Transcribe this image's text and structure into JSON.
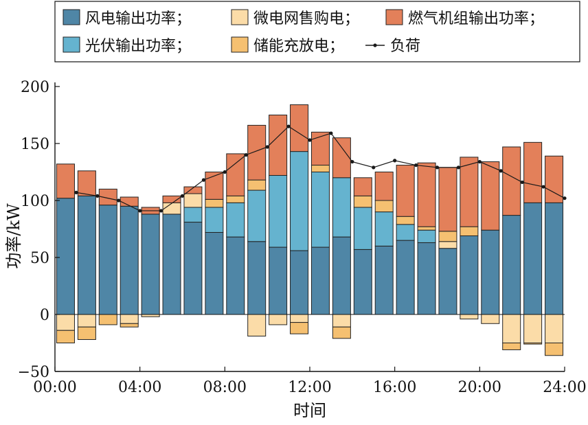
{
  "chart_data": {
    "type": "bar",
    "stacked": true,
    "xlabel": "时间",
    "ylabel": "功率/kW",
    "ylim": [
      -50,
      200
    ],
    "xlim": [
      0,
      24
    ],
    "x_ticks": [
      {
        "value": 0,
        "label": "00:00"
      },
      {
        "value": 4,
        "label": "04:00"
      },
      {
        "value": 8,
        "label": "08:00"
      },
      {
        "value": 12,
        "label": "12:00"
      },
      {
        "value": 16,
        "label": "16:00"
      },
      {
        "value": 20,
        "label": "20:00"
      },
      {
        "value": 24,
        "label": "24:00"
      }
    ],
    "y_ticks": [
      {
        "value": -50,
        "label": "−50"
      },
      {
        "value": 0,
        "label": "0"
      },
      {
        "value": 50,
        "label": "50"
      },
      {
        "value": 100,
        "label": "100"
      },
      {
        "value": 150,
        "label": "150"
      },
      {
        "value": 200,
        "label": "200"
      }
    ],
    "hours": [
      1,
      2,
      3,
      4,
      5,
      6,
      7,
      8,
      9,
      10,
      11,
      12,
      13,
      14,
      15,
      16,
      17,
      18,
      19,
      20,
      21,
      22,
      23,
      24
    ],
    "legend": [
      {
        "key": "wind",
        "label": "风电输出功率；"
      },
      {
        "key": "grid",
        "label": "微电网售购电；"
      },
      {
        "key": "gas",
        "label": "燃气机组输出功率；"
      },
      {
        "key": "pv",
        "label": "光伏输出功率；"
      },
      {
        "key": "storage",
        "label": "储能充放电；"
      },
      {
        "key": "load",
        "label": "负荷"
      }
    ],
    "series": [
      {
        "key": "wind",
        "name": "风电输出功率",
        "color": "#4f86a6",
        "values": [
          102,
          104,
          96,
          95,
          88,
          88,
          81,
          72,
          68,
          64,
          59,
          56,
          59,
          68,
          57,
          60,
          65,
          63,
          58,
          69,
          74,
          87,
          98,
          98
        ]
      },
      {
        "key": "pv",
        "name": "光伏输出功率",
        "color": "#65b3cf",
        "values": [
          0,
          0,
          0,
          0,
          0,
          0,
          13,
          22,
          30,
          45,
          63,
          87,
          66,
          52,
          37,
          30,
          14,
          11,
          0,
          0,
          0,
          0,
          0,
          0
        ]
      },
      {
        "key": "grid",
        "name": "微电网售购电",
        "color": "#fbdca8",
        "values": [
          0,
          0,
          0,
          0,
          0,
          10,
          12,
          0,
          0,
          0,
          0,
          0,
          0,
          0,
          0,
          0,
          0,
          0,
          6,
          0,
          0,
          0,
          0,
          0
        ]
      },
      {
        "key": "storage",
        "name": "储能充放电",
        "color": "#f5c071",
        "values": [
          0,
          0,
          0,
          0,
          0,
          0,
          0,
          7,
          6,
          9,
          0,
          0,
          6,
          0,
          10,
          10,
          7,
          3,
          9,
          8,
          0,
          0,
          0,
          0
        ]
      },
      {
        "key": "gas",
        "name": "燃气机组输出功率",
        "color": "#e3805a",
        "values": [
          30,
          22,
          14,
          8,
          6,
          6,
          6,
          24,
          37,
          48,
          53,
          41,
          29,
          35,
          16,
          25,
          45,
          56,
          56,
          61,
          60,
          60,
          53,
          41
        ]
      }
    ],
    "negative_series": [
      {
        "key": "grid",
        "values": [
          -14,
          -11,
          0,
          -8,
          -2,
          0,
          0,
          0,
          0,
          -19,
          -9,
          -7,
          0,
          -11,
          0,
          0,
          0,
          0,
          0,
          -4,
          -8,
          -25,
          -25,
          -25
        ]
      },
      {
        "key": "storage",
        "values": [
          -11,
          -11,
          -9,
          -3,
          0,
          0,
          0,
          0,
          0,
          0,
          0,
          -10,
          0,
          -10,
          0,
          0,
          0,
          0,
          0,
          0,
          0,
          -6,
          -1,
          -11
        ]
      }
    ],
    "load": {
      "name": "负荷",
      "color": "#1a1a1a",
      "values": [
        107,
        104,
        100,
        91,
        91,
        104,
        118,
        125,
        140,
        147,
        165,
        153,
        159,
        134,
        129,
        135,
        131,
        129,
        129,
        134,
        126,
        116,
        112,
        102
      ]
    },
    "grid": false,
    "legend_position": "top"
  }
}
